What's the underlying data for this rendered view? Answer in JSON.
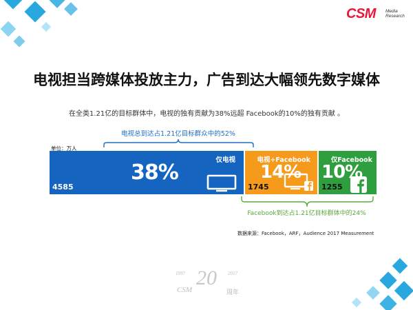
{
  "logo": {
    "main": "CSM",
    "sub_line1": "Media",
    "sub_line2": "Research"
  },
  "title": "电视担当跨媒体投放主力，广告到达大幅领先数字媒体",
  "subtitle": "在全类1.21亿的目标群体中，电视的独有贡献为38%远超 Facebook的10%的独有贡献 。",
  "annotations": {
    "tv_reach": "电视总到达占1.21亿目标群众中的52%",
    "fb_reach": "Facebook到达占1.21亿目标群体中的24%"
  },
  "unit_label": "单位：万人",
  "source": "数据来源：Facebook，ARF，Audience 2017 Measurement",
  "anniversary": {
    "year_start": "1997",
    "year_end": "2017",
    "number": "20",
    "brand": "CSM",
    "suffix": "周年"
  },
  "colors": {
    "tv": "#1565c0",
    "both": "#f59a1b",
    "fb": "#2f9e3f",
    "brace": "#1b6fc4",
    "fb_brace": "#5aa83c",
    "accent": "#29a8e0"
  },
  "icons": [
    "tv-icon",
    "tv-facebook-icon",
    "facebook-icon"
  ],
  "chart_data": {
    "type": "bar",
    "orientation": "horizontal-stacked",
    "unit": "万人",
    "categories": [
      "仅电视",
      "电视+Facebook",
      "仅Facebook"
    ],
    "values": [
      4585,
      1745,
      1255
    ],
    "percent_labels": [
      "38%",
      "14%",
      "10%"
    ],
    "series": [
      {
        "name": "仅电视",
        "value": 4585,
        "percent": 38
      },
      {
        "name": "电视+Facebook",
        "value": 1745,
        "percent": 14
      },
      {
        "name": "仅Facebook",
        "value": 1255,
        "percent": 10
      }
    ],
    "value_labels": [
      "4585",
      "1745",
      "1255"
    ]
  }
}
